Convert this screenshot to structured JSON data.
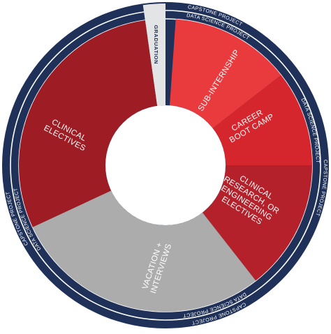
{
  "colors": {
    "ring_navy": "#1f3158",
    "ring_divider": "#ffffff",
    "ring_text": "#ffffff",
    "graduation_fill": "#e2e4e6",
    "graduation_text": "#1f3158",
    "clinical_electives": "#9e1c23",
    "sub_internship": "#e93a3e",
    "career_boot_camp": "#d6262d",
    "clinical_research": "#b5212b",
    "vacation": "#acacac",
    "center": "#ffffff"
  },
  "segments": [
    {
      "id": "graduation",
      "lines": [
        "GRADUATION"
      ],
      "color_key": "graduation_fill"
    },
    {
      "id": "sub-internship",
      "lines": [
        "SUB-INTERNSHIP"
      ],
      "color_key": "sub_internship"
    },
    {
      "id": "career-boot-camp",
      "lines": [
        "CAREER",
        "BOOT CAMP"
      ],
      "color_key": "career_boot_camp"
    },
    {
      "id": "clinical-research",
      "lines": [
        "CLINICAL",
        "RESEARCH, OR",
        "ENGINEERING",
        "ELECTIVES"
      ],
      "color_key": "clinical_research"
    },
    {
      "id": "vacation-interviews",
      "lines": [
        "VACATION +",
        "INTERVIEWS"
      ],
      "color_key": "vacation"
    },
    {
      "id": "clinical-electives",
      "lines": [
        "CLINICAL",
        "ELECTIVES"
      ],
      "color_key": "clinical_electives"
    }
  ],
  "outer_ring_labels": [
    {
      "id": "top-right-a",
      "text": "CAPSTONE PROJECT"
    },
    {
      "id": "top-right-b",
      "text": "DATA SCIENCE PROJECT"
    },
    {
      "id": "right",
      "text": "DATA SCIENCE PROJECT"
    },
    {
      "id": "right-b",
      "text": "CAPSTONE PROJECT"
    },
    {
      "id": "bottom-a",
      "text": "DATA SCIENCE PROJECT"
    },
    {
      "id": "bottom-b",
      "text": "CAPSTONE PROJECT"
    },
    {
      "id": "left-a",
      "text": "CAPSTONE PROJECT"
    },
    {
      "id": "left-b",
      "text": "DATA SCIENCE PROJECT"
    }
  ]
}
